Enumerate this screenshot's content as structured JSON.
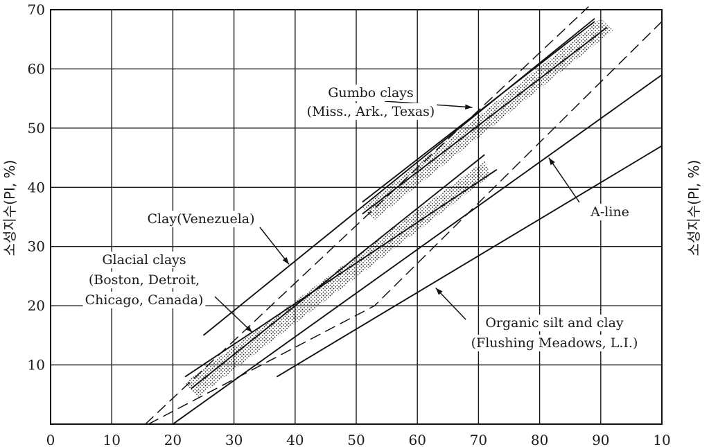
{
  "chart_data": {
    "type": "line",
    "title": "",
    "xlabel": "",
    "ylabel": "소성지수(PI, %)",
    "ylabel_right": "소성지수(PI, %)",
    "xlim": [
      0,
      100
    ],
    "ylim": [
      0,
      70
    ],
    "x_ticks": [
      "0",
      "10",
      "20",
      "30",
      "40",
      "50",
      "60",
      "70",
      "80",
      "90",
      "10"
    ],
    "y_ticks": [
      "10",
      "20",
      "30",
      "40",
      "50",
      "60",
      "70"
    ],
    "grid": true,
    "lines": [
      {
        "style": "solid",
        "points": [
          [
            25,
            15
          ],
          [
            89,
            68.5
          ]
        ]
      },
      {
        "style": "solid",
        "points": [
          [
            22,
            8
          ],
          [
            73,
            43
          ]
        ]
      },
      {
        "style": "solid",
        "points": [
          [
            23,
            6
          ],
          [
            71,
            45.5
          ]
        ]
      },
      {
        "style": "solid",
        "points": [
          [
            20,
            0
          ],
          [
            100,
            59
          ]
        ]
      },
      {
        "style": "solid",
        "points": [
          [
            37,
            8
          ],
          [
            100,
            47
          ]
        ]
      },
      {
        "style": "solid",
        "points": [
          [
            51,
            35.5
          ],
          [
            91,
            67
          ]
        ]
      },
      {
        "style": "solid",
        "points": [
          [
            51,
            37.5
          ],
          [
            89,
            68
          ]
        ]
      },
      {
        "style": "dashed",
        "points": [
          [
            15.5,
            0
          ],
          [
            88,
            70.5
          ]
        ]
      },
      {
        "style": "dashed",
        "points": [
          [
            16,
            0
          ],
          [
            53,
            20
          ],
          [
            100,
            68
          ]
        ]
      }
    ],
    "bands": [
      {
        "points": [
          [
            51,
            36.5
          ],
          [
            90,
            68.5
          ],
          [
            92,
            66.5
          ],
          [
            53,
            34.5
          ]
        ]
      },
      {
        "points": [
          [
            22,
            7
          ],
          [
            71,
            44.5
          ],
          [
            72,
            42
          ],
          [
            24,
            4.5
          ]
        ]
      }
    ],
    "annotations": [
      {
        "lines": [
          "Gumbo clays",
          "(Miss., Ark., Texas)"
        ],
        "pointer": [
          [
            69,
            53.5
          ]
        ]
      },
      {
        "lines": [
          "Clay(Venezuela)"
        ],
        "pointer": [
          [
            39,
            27
          ]
        ]
      },
      {
        "lines": [
          "Glacial clays",
          "(Boston, Detroit,",
          "Chicago, Canada)"
        ],
        "pointer": [
          [
            33,
            15.5
          ]
        ]
      },
      {
        "lines": [
          "A-line"
        ],
        "pointer": [
          [
            81.5,
            45
          ]
        ]
      },
      {
        "lines": [
          "Organic silt and clay",
          "(Flushing Meadows, L.I.)"
        ],
        "pointer": [
          [
            63,
            23
          ]
        ]
      }
    ]
  }
}
